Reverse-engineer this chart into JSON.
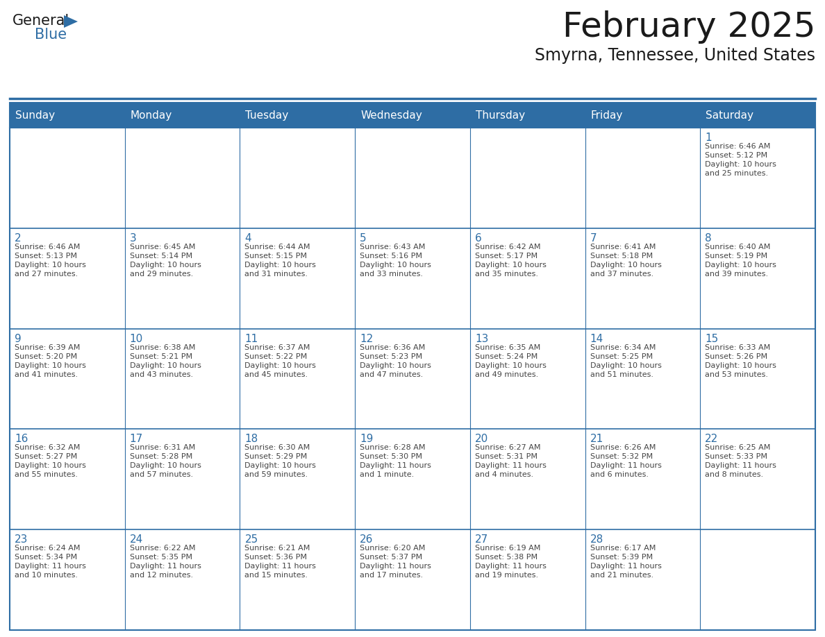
{
  "title": "February 2025",
  "subtitle": "Smyrna, Tennessee, United States",
  "header_bg": "#2E6DA4",
  "header_text_color": "#FFFFFF",
  "cell_bg": "#FFFFFF",
  "border_color": "#2E6DA4",
  "separator_color": "#2E6DA4",
  "day_headers": [
    "Sunday",
    "Monday",
    "Tuesday",
    "Wednesday",
    "Thursday",
    "Friday",
    "Saturday"
  ],
  "title_color": "#1a1a1a",
  "subtitle_color": "#1a1a1a",
  "cell_text_color": "#444444",
  "day_num_color": "#2E6DA4",
  "logo_general_color": "#1a1a1a",
  "logo_blue_color": "#2E6DA4",
  "title_fontsize": 36,
  "subtitle_fontsize": 17,
  "header_fontsize": 11,
  "day_num_fontsize": 11,
  "cell_fontsize": 8,
  "days": [
    {
      "day": 1,
      "col": 6,
      "row": 0,
      "sunrise": "6:46 AM",
      "sunset": "5:12 PM",
      "daylight_line1": "10 hours",
      "daylight_line2": "and 25 minutes."
    },
    {
      "day": 2,
      "col": 0,
      "row": 1,
      "sunrise": "6:46 AM",
      "sunset": "5:13 PM",
      "daylight_line1": "10 hours",
      "daylight_line2": "and 27 minutes."
    },
    {
      "day": 3,
      "col": 1,
      "row": 1,
      "sunrise": "6:45 AM",
      "sunset": "5:14 PM",
      "daylight_line1": "10 hours",
      "daylight_line2": "and 29 minutes."
    },
    {
      "day": 4,
      "col": 2,
      "row": 1,
      "sunrise": "6:44 AM",
      "sunset": "5:15 PM",
      "daylight_line1": "10 hours",
      "daylight_line2": "and 31 minutes."
    },
    {
      "day": 5,
      "col": 3,
      "row": 1,
      "sunrise": "6:43 AM",
      "sunset": "5:16 PM",
      "daylight_line1": "10 hours",
      "daylight_line2": "and 33 minutes."
    },
    {
      "day": 6,
      "col": 4,
      "row": 1,
      "sunrise": "6:42 AM",
      "sunset": "5:17 PM",
      "daylight_line1": "10 hours",
      "daylight_line2": "and 35 minutes."
    },
    {
      "day": 7,
      "col": 5,
      "row": 1,
      "sunrise": "6:41 AM",
      "sunset": "5:18 PM",
      "daylight_line1": "10 hours",
      "daylight_line2": "and 37 minutes."
    },
    {
      "day": 8,
      "col": 6,
      "row": 1,
      "sunrise": "6:40 AM",
      "sunset": "5:19 PM",
      "daylight_line1": "10 hours",
      "daylight_line2": "and 39 minutes."
    },
    {
      "day": 9,
      "col": 0,
      "row": 2,
      "sunrise": "6:39 AM",
      "sunset": "5:20 PM",
      "daylight_line1": "10 hours",
      "daylight_line2": "and 41 minutes."
    },
    {
      "day": 10,
      "col": 1,
      "row": 2,
      "sunrise": "6:38 AM",
      "sunset": "5:21 PM",
      "daylight_line1": "10 hours",
      "daylight_line2": "and 43 minutes."
    },
    {
      "day": 11,
      "col": 2,
      "row": 2,
      "sunrise": "6:37 AM",
      "sunset": "5:22 PM",
      "daylight_line1": "10 hours",
      "daylight_line2": "and 45 minutes."
    },
    {
      "day": 12,
      "col": 3,
      "row": 2,
      "sunrise": "6:36 AM",
      "sunset": "5:23 PM",
      "daylight_line1": "10 hours",
      "daylight_line2": "and 47 minutes."
    },
    {
      "day": 13,
      "col": 4,
      "row": 2,
      "sunrise": "6:35 AM",
      "sunset": "5:24 PM",
      "daylight_line1": "10 hours",
      "daylight_line2": "and 49 minutes."
    },
    {
      "day": 14,
      "col": 5,
      "row": 2,
      "sunrise": "6:34 AM",
      "sunset": "5:25 PM",
      "daylight_line1": "10 hours",
      "daylight_line2": "and 51 minutes."
    },
    {
      "day": 15,
      "col": 6,
      "row": 2,
      "sunrise": "6:33 AM",
      "sunset": "5:26 PM",
      "daylight_line1": "10 hours",
      "daylight_line2": "and 53 minutes."
    },
    {
      "day": 16,
      "col": 0,
      "row": 3,
      "sunrise": "6:32 AM",
      "sunset": "5:27 PM",
      "daylight_line1": "10 hours",
      "daylight_line2": "and 55 minutes."
    },
    {
      "day": 17,
      "col": 1,
      "row": 3,
      "sunrise": "6:31 AM",
      "sunset": "5:28 PM",
      "daylight_line1": "10 hours",
      "daylight_line2": "and 57 minutes."
    },
    {
      "day": 18,
      "col": 2,
      "row": 3,
      "sunrise": "6:30 AM",
      "sunset": "5:29 PM",
      "daylight_line1": "10 hours",
      "daylight_line2": "and 59 minutes."
    },
    {
      "day": 19,
      "col": 3,
      "row": 3,
      "sunrise": "6:28 AM",
      "sunset": "5:30 PM",
      "daylight_line1": "11 hours",
      "daylight_line2": "and 1 minute."
    },
    {
      "day": 20,
      "col": 4,
      "row": 3,
      "sunrise": "6:27 AM",
      "sunset": "5:31 PM",
      "daylight_line1": "11 hours",
      "daylight_line2": "and 4 minutes."
    },
    {
      "day": 21,
      "col": 5,
      "row": 3,
      "sunrise": "6:26 AM",
      "sunset": "5:32 PM",
      "daylight_line1": "11 hours",
      "daylight_line2": "and 6 minutes."
    },
    {
      "day": 22,
      "col": 6,
      "row": 3,
      "sunrise": "6:25 AM",
      "sunset": "5:33 PM",
      "daylight_line1": "11 hours",
      "daylight_line2": "and 8 minutes."
    },
    {
      "day": 23,
      "col": 0,
      "row": 4,
      "sunrise": "6:24 AM",
      "sunset": "5:34 PM",
      "daylight_line1": "11 hours",
      "daylight_line2": "and 10 minutes."
    },
    {
      "day": 24,
      "col": 1,
      "row": 4,
      "sunrise": "6:22 AM",
      "sunset": "5:35 PM",
      "daylight_line1": "11 hours",
      "daylight_line2": "and 12 minutes."
    },
    {
      "day": 25,
      "col": 2,
      "row": 4,
      "sunrise": "6:21 AM",
      "sunset": "5:36 PM",
      "daylight_line1": "11 hours",
      "daylight_line2": "and 15 minutes."
    },
    {
      "day": 26,
      "col": 3,
      "row": 4,
      "sunrise": "6:20 AM",
      "sunset": "5:37 PM",
      "daylight_line1": "11 hours",
      "daylight_line2": "and 17 minutes."
    },
    {
      "day": 27,
      "col": 4,
      "row": 4,
      "sunrise": "6:19 AM",
      "sunset": "5:38 PM",
      "daylight_line1": "11 hours",
      "daylight_line2": "and 19 minutes."
    },
    {
      "day": 28,
      "col": 5,
      "row": 4,
      "sunrise": "6:17 AM",
      "sunset": "5:39 PM",
      "daylight_line1": "11 hours",
      "daylight_line2": "and 21 minutes."
    }
  ]
}
